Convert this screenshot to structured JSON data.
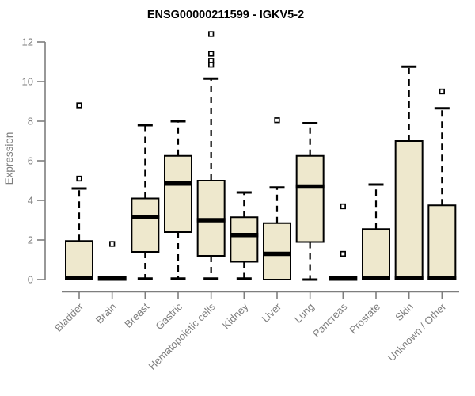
{
  "chart_data": {
    "type": "box",
    "title": "ENSG00000211599 - IGKV5-2",
    "ylabel": "Expression",
    "xlabel": "",
    "ylim": [
      0,
      12.4
    ],
    "yticks": [
      0,
      2,
      4,
      6,
      8,
      10,
      12
    ],
    "grid": false,
    "legend": "none",
    "colors": {
      "box_fill": "#EEE8CD",
      "box_stroke": "#000000",
      "median": "#000000",
      "axis": "#7e7e7e",
      "background": "#ffffff"
    },
    "categories": [
      "Bladder",
      "Brain",
      "Breast",
      "Gastric",
      "Hematopoietic cells",
      "Kidney",
      "Liver",
      "Lung",
      "Pancreas",
      "Prostate",
      "Skin",
      "Unknown / Other"
    ],
    "boxes": [
      {
        "category": "Bladder",
        "whisker_low": 0,
        "q1": 0,
        "median": 0.08,
        "q3": 1.95,
        "whisker_high": 4.6,
        "outliers": [
          8.8,
          5.1
        ]
      },
      {
        "category": "Brain",
        "whisker_low": 0.05,
        "q1": 0.05,
        "median": 0.05,
        "q3": 0.05,
        "whisker_high": 0.05,
        "outliers": [
          1.8
        ]
      },
      {
        "category": "Breast",
        "whisker_low": 0.05,
        "q1": 1.4,
        "median": 3.15,
        "q3": 4.1,
        "whisker_high": 7.8,
        "outliers": []
      },
      {
        "category": "Gastric",
        "whisker_low": 0.05,
        "q1": 2.4,
        "median": 4.85,
        "q3": 6.25,
        "whisker_high": 8.0,
        "outliers": []
      },
      {
        "category": "Hematopoietic cells",
        "whisker_low": 0.05,
        "q1": 1.2,
        "median": 3.0,
        "q3": 5.0,
        "whisker_high": 10.15,
        "outliers": [
          12.4,
          11.4,
          11.05,
          10.85
        ]
      },
      {
        "category": "Kidney",
        "whisker_low": 0.05,
        "q1": 0.9,
        "median": 2.25,
        "q3": 3.15,
        "whisker_high": 4.4,
        "outliers": []
      },
      {
        "category": "Liver",
        "whisker_low": 0,
        "q1": 0,
        "median": 1.3,
        "q3": 2.85,
        "whisker_high": 4.65,
        "outliers": [
          8.05
        ]
      },
      {
        "category": "Lung",
        "whisker_low": 0,
        "q1": 1.9,
        "median": 4.7,
        "q3": 6.25,
        "whisker_high": 7.9,
        "outliers": []
      },
      {
        "category": "Pancreas",
        "whisker_low": 0.05,
        "q1": 0.05,
        "median": 0.05,
        "q3": 0.05,
        "whisker_high": 0.05,
        "outliers": [
          3.7,
          1.3
        ]
      },
      {
        "category": "Prostate",
        "whisker_low": 0,
        "q1": 0,
        "median": 0.08,
        "q3": 2.55,
        "whisker_high": 4.8,
        "outliers": []
      },
      {
        "category": "Skin",
        "whisker_low": 0,
        "q1": 0,
        "median": 0.08,
        "q3": 7.0,
        "whisker_high": 10.75,
        "outliers": []
      },
      {
        "category": "Unknown / Other",
        "whisker_low": 0,
        "q1": 0,
        "median": 0.08,
        "q3": 3.75,
        "whisker_high": 8.65,
        "outliers": [
          9.5
        ]
      }
    ]
  }
}
